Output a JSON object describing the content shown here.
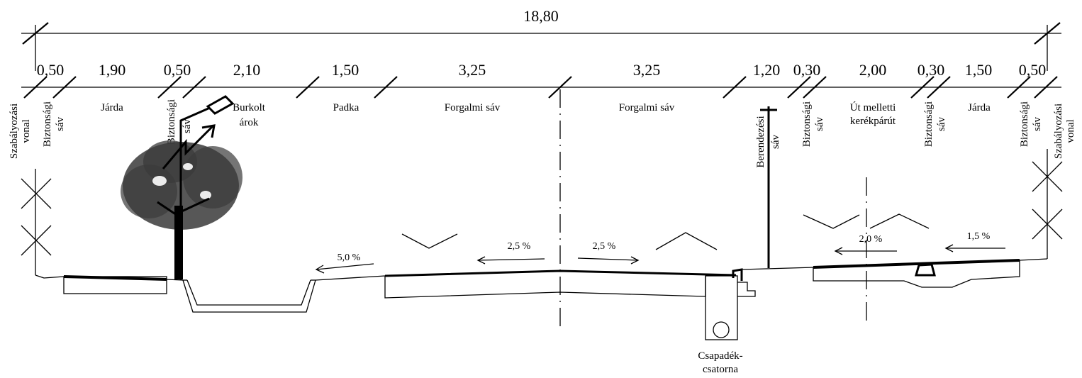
{
  "total_width": "18,80",
  "dimensions": [
    "0,50",
    "1,90",
    "0,50",
    "2,10",
    "1,50",
    "3,25",
    "3,25",
    "1,20",
    "0,30",
    "2,00",
    "0,30",
    "1,50",
    "0,50"
  ],
  "zones": {
    "szabalyozasi_left": [
      "Szabályozási",
      "vonal"
    ],
    "biztonsagi_1": [
      "Biztonsági",
      "sáv"
    ],
    "jarda_left": "Járda",
    "biztonsagi_2": [
      "Biztonsági",
      "sáv"
    ],
    "burkolt_arok": [
      "Burkolt",
      "árok"
    ],
    "padka": "Padka",
    "forgalmi_left": "Forgalmi sáv",
    "forgalmi_right": "Forgalmi sáv",
    "berendezesi": [
      "Berendezési",
      "sáv"
    ],
    "biztonsagi_3": [
      "Biztonsági",
      "sáv"
    ],
    "kerekparut": [
      "Út melletti",
      "kerékpárút"
    ],
    "biztonsagi_4": [
      "Biztonsági",
      "sáv"
    ],
    "jarda_right": "Járda",
    "biztonsagi_5": [
      "Biztonsági",
      "sáv"
    ],
    "szabalyozasi_right": [
      "Szabályozási",
      "vonal"
    ]
  },
  "slopes": {
    "padka": "5,0 %",
    "road_left": "2,5 %",
    "road_right": "2,5 %",
    "bike": "2,0 %",
    "sidewalk_right": "1,5 %"
  },
  "drain": [
    "Csapadék-",
    "csatorna"
  ],
  "colors": {
    "line": "#000000",
    "tree": "#3a3a3a"
  }
}
